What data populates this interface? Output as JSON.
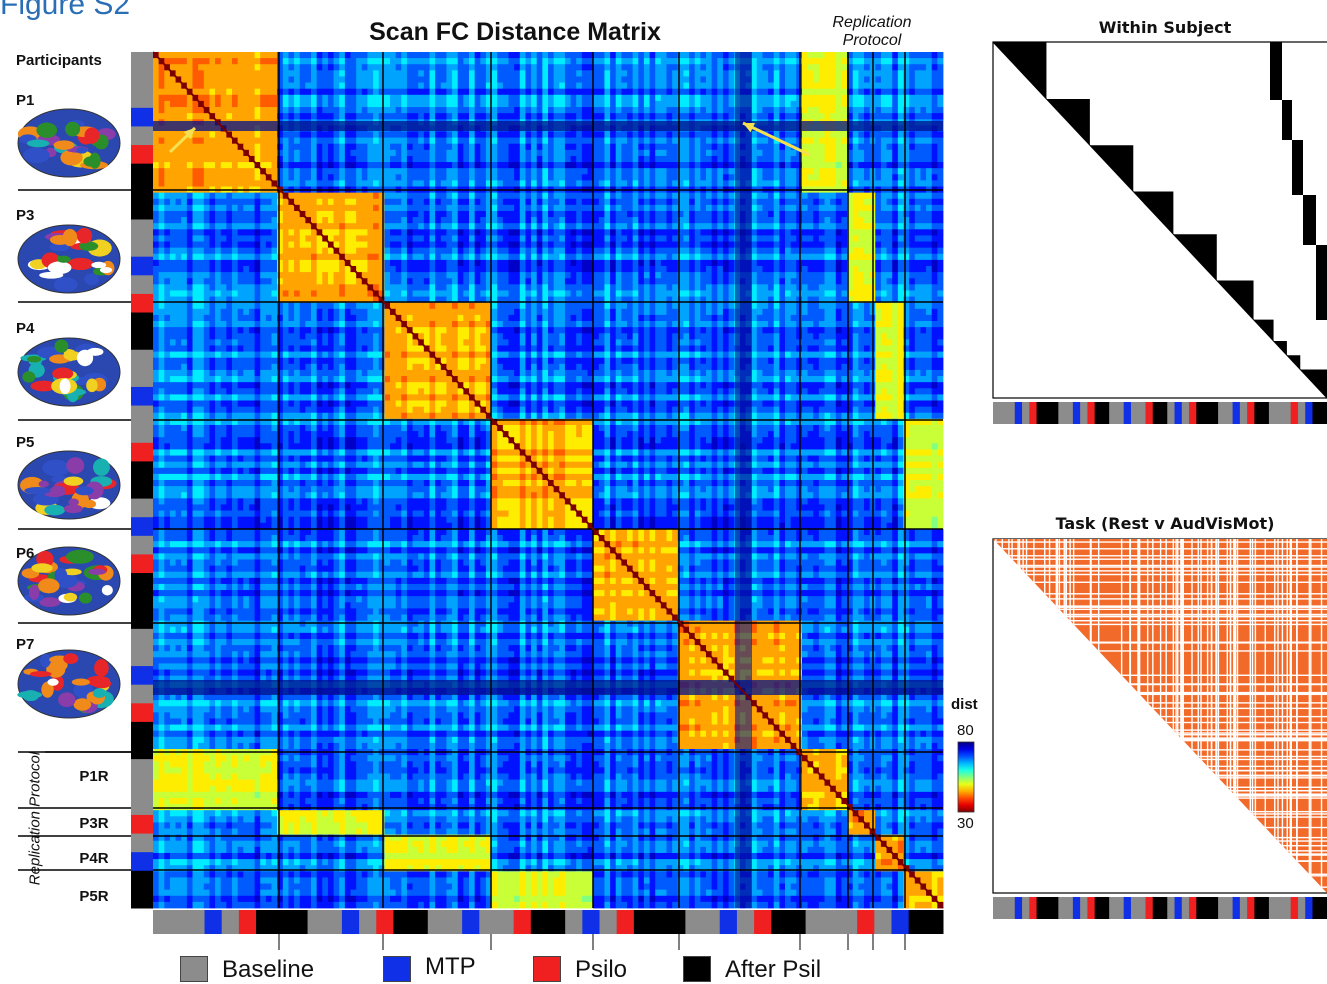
{
  "figure_label": "Figure S2",
  "main_title": "Scan FC Distance Matrix",
  "replication_header": "Replication Protocol",
  "participants_header": "Participants",
  "participants": [
    "P1",
    "P3",
    "P4",
    "P5",
    "P6",
    "P7"
  ],
  "replication_participants": [
    "P1R",
    "P3R",
    "P4R",
    "P5R"
  ],
  "replication_side_label": "Replication Protocol",
  "colorbar": {
    "label": "dist",
    "max": "80",
    "min": "30"
  },
  "panels": {
    "within_subject": "Within Subject",
    "task": "Task (Rest v AudVisMot)"
  },
  "legend": [
    {
      "label": "Baseline",
      "color": "#8c8c8c"
    },
    {
      "label": "MTP",
      "color": "#1030e8"
    },
    {
      "label": "Psilo",
      "color": "#f02020"
    },
    {
      "label": "After Psil",
      "color": "#000000"
    }
  ],
  "chart_data": [
    {
      "type": "heatmap",
      "title": "Scan FC Distance Matrix",
      "blocks": [
        "P1",
        "P3",
        "P4",
        "P5",
        "P6",
        "P7",
        "P1R",
        "P3R",
        "P4R",
        "P5R"
      ],
      "colorbar_label": "dist",
      "value_range": [
        30,
        80
      ],
      "colormap": "jet (red = 30, blue = 80)"
    },
    {
      "type": "heatmap",
      "title": "Within Subject",
      "values": "binary (black = same subject)"
    },
    {
      "type": "heatmap",
      "title": "Task (Rest v AudVisMot)",
      "values": "binary (orange = same task)"
    }
  ]
}
